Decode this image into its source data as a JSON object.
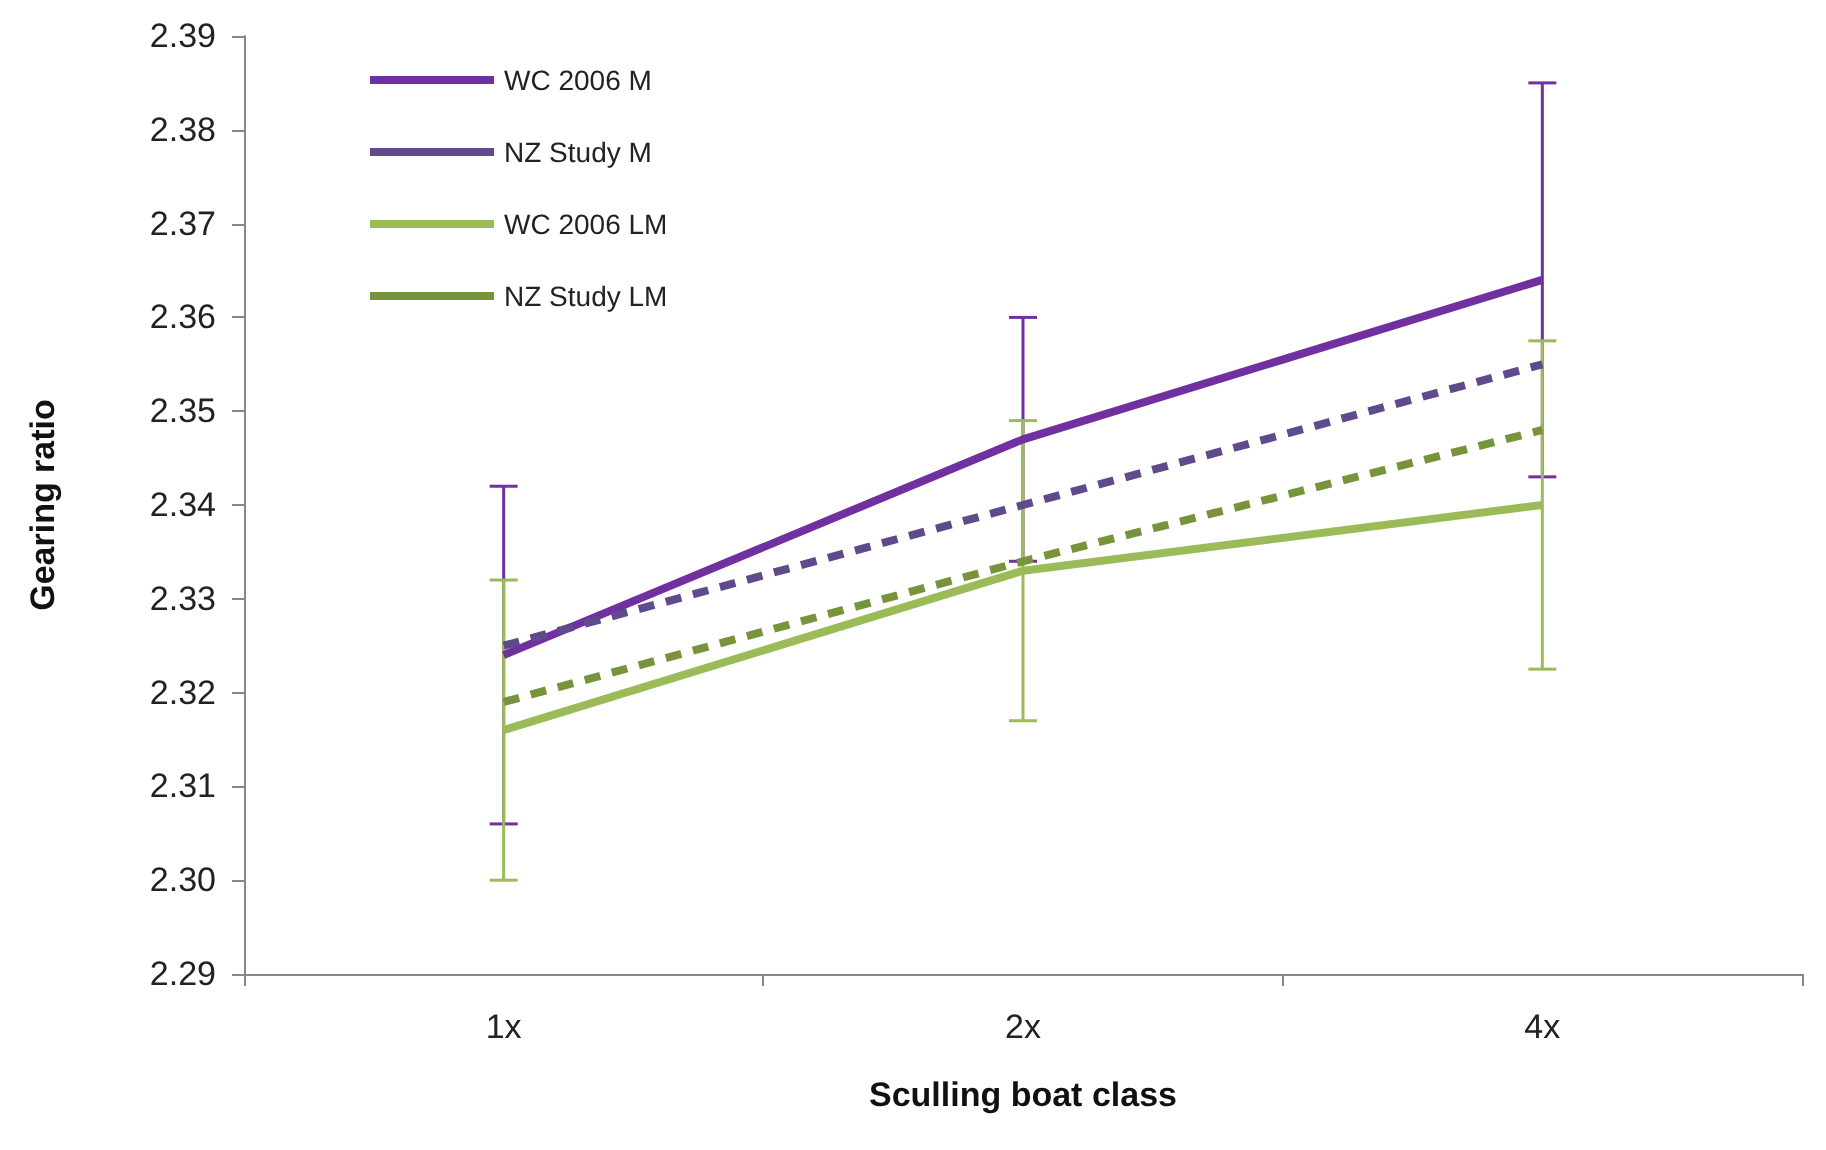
{
  "chart_data": {
    "type": "line",
    "xlabel": "Sculling boat class",
    "ylabel": "Gearing ratio",
    "categories": [
      "1x",
      "2x",
      "4x"
    ],
    "ylim": [
      2.29,
      2.39
    ],
    "yticks": [
      {
        "value": 2.29,
        "label": "2.29"
      },
      {
        "value": 2.3,
        "label": "2.30"
      },
      {
        "value": 2.31,
        "label": "2.31"
      },
      {
        "value": 2.32,
        "label": "2.32"
      },
      {
        "value": 2.33,
        "label": "2.33"
      },
      {
        "value": 2.34,
        "label": "2.34"
      },
      {
        "value": 2.35,
        "label": "2.35"
      },
      {
        "value": 2.36,
        "label": "2.36"
      },
      {
        "value": 2.37,
        "label": "2.37"
      },
      {
        "value": 2.38,
        "label": "2.38"
      },
      {
        "value": 2.39,
        "label": "2.39"
      }
    ],
    "grid": false,
    "legend": "top left",
    "marker": "none",
    "series": [
      {
        "name": "WC 2006 M",
        "color": "#7030a0",
        "line_style": "solid",
        "values": [
          2.324,
          2.347,
          2.364
        ],
        "errors": [
          0.018,
          0.013,
          0.021
        ]
      },
      {
        "name": "NZ Study M",
        "color": "#5f4b8b",
        "line_style": "dashed",
        "values": [
          2.325,
          2.34,
          2.355
        ]
      },
      {
        "name": "WC 2006 LM",
        "color": "#9bbb59",
        "line_style": "solid",
        "values": [
          2.316,
          2.333,
          2.34
        ],
        "errors": [
          0.016,
          0.016,
          0.0175
        ]
      },
      {
        "name": "NZ Study LM",
        "color": "#77933c",
        "line_style": "dashed",
        "values": [
          2.319,
          2.334,
          2.348
        ]
      }
    ]
  }
}
